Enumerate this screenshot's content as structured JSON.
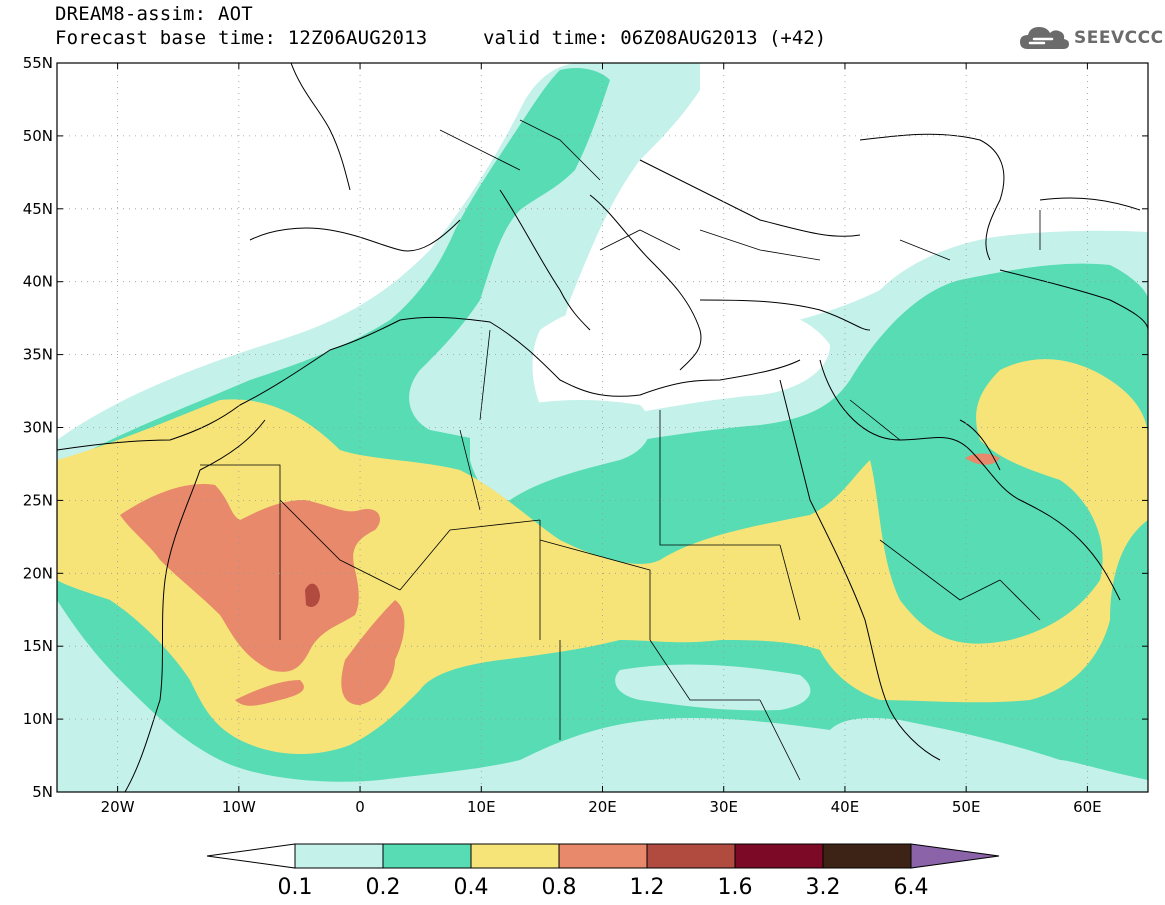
{
  "title": {
    "line1": "DREAM8-assim: AOT",
    "line2": "Forecast base time: 12Z06AUG2013",
    "valid": "valid time: 06Z08AUG2013 (+42)"
  },
  "logo": {
    "text": "SEEVCCC",
    "icon": "cloud-icon",
    "color": "#6b6b6b"
  },
  "map_data": {
    "type": "filled-contour-map",
    "variable": "AOT",
    "lon_range": [
      -25,
      65
    ],
    "lat_range": [
      5,
      55
    ],
    "lon_ticks": [
      {
        "value": -20,
        "label": "20W"
      },
      {
        "value": -10,
        "label": "10W"
      },
      {
        "value": 0,
        "label": "0"
      },
      {
        "value": 10,
        "label": "10E"
      },
      {
        "value": 20,
        "label": "20E"
      },
      {
        "value": 30,
        "label": "30E"
      },
      {
        "value": 40,
        "label": "40E"
      },
      {
        "value": 50,
        "label": "50E"
      },
      {
        "value": 60,
        "label": "60E"
      }
    ],
    "lat_ticks": [
      {
        "value": 55,
        "label": "55N"
      },
      {
        "value": 50,
        "label": "50N"
      },
      {
        "value": 45,
        "label": "45N"
      },
      {
        "value": 40,
        "label": "40N"
      },
      {
        "value": 35,
        "label": "35N"
      },
      {
        "value": 30,
        "label": "30N"
      },
      {
        "value": 25,
        "label": "25N"
      },
      {
        "value": 20,
        "label": "20N"
      },
      {
        "value": 15,
        "label": "15N"
      },
      {
        "value": 10,
        "label": "10N"
      },
      {
        "value": 5,
        "label": "5N"
      }
    ],
    "grid": true
  },
  "colorbar": {
    "labels": [
      "0.1",
      "0.2",
      "0.4",
      "0.8",
      "1.2",
      "1.6",
      "3.2",
      "6.4"
    ],
    "colors": [
      "#ffffff",
      "#c4f1ea",
      "#57dcb3",
      "#f6e479",
      "#e7896a",
      "#b14b3f",
      "#7c0925",
      "#3d2316",
      "#8a63a8"
    ]
  }
}
